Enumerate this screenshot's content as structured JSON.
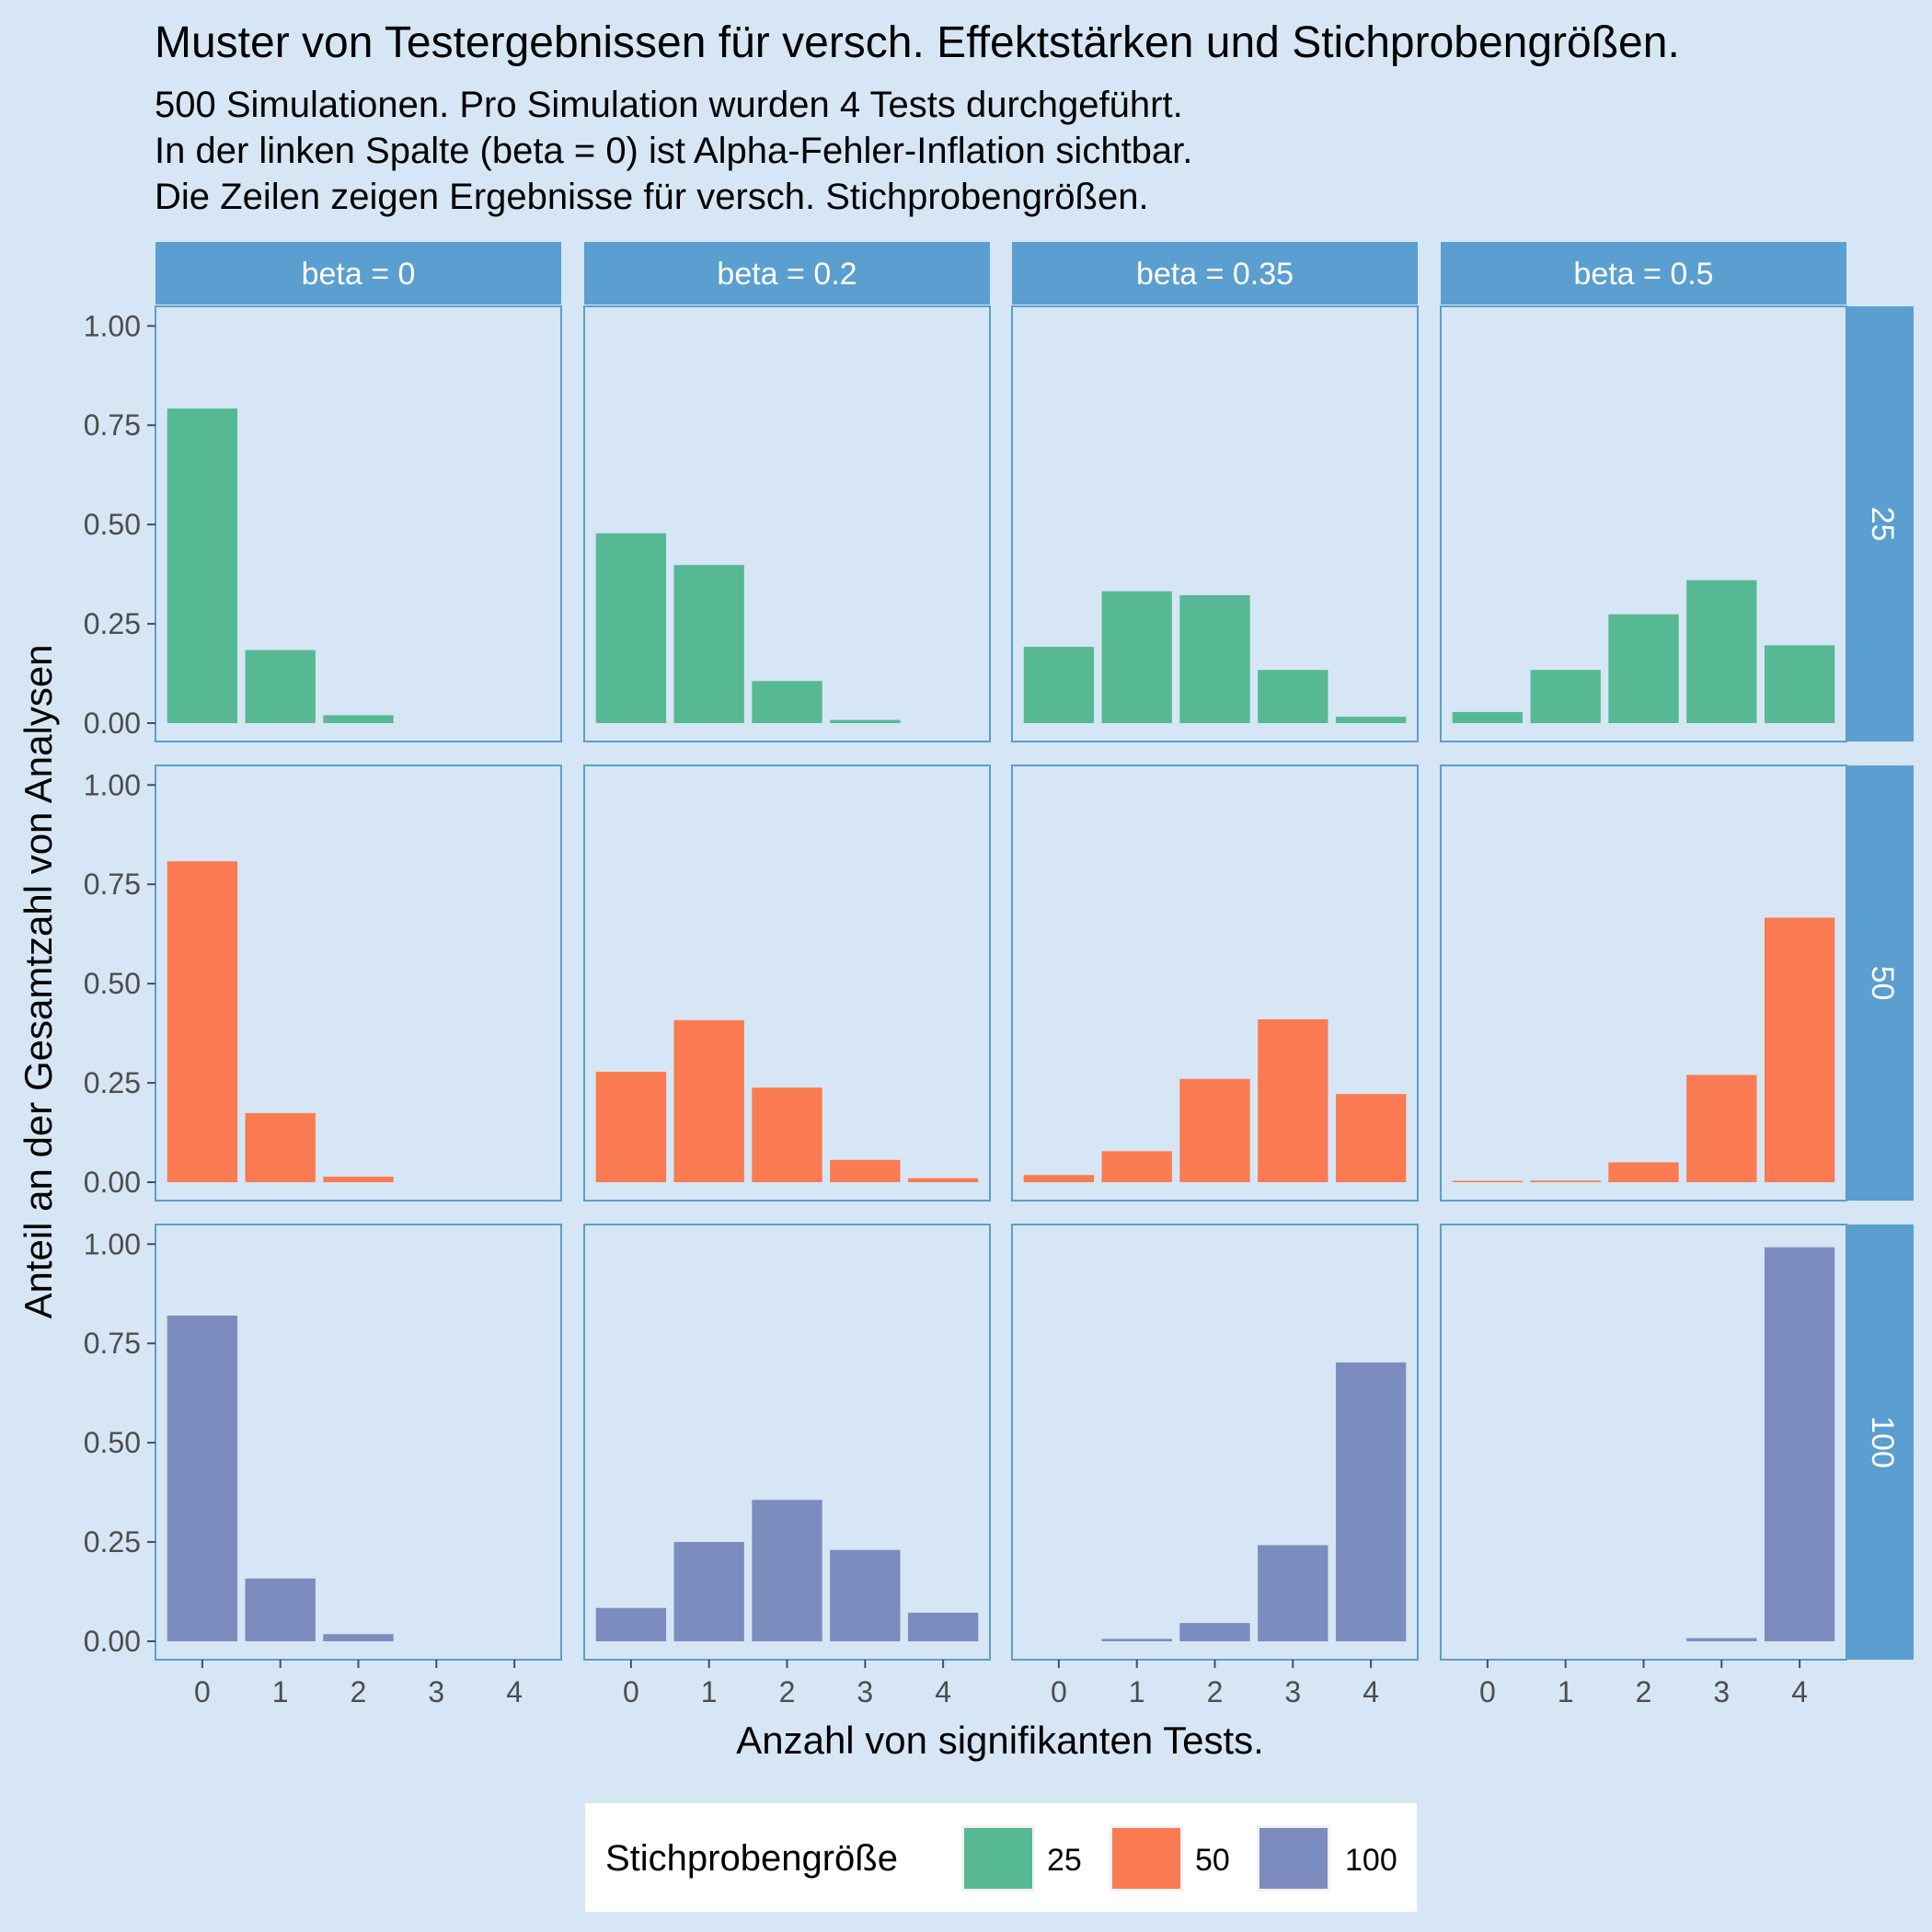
{
  "chart_data": {
    "type": "bar",
    "title": "Muster von Testergebnissen für versch. Effektstärken und Stichprobengrößen.",
    "subtitle_lines": [
      "500 Simulationen. Pro Simulation wurden 4 Tests durchgeführt.",
      "In der linken Spalte (beta = 0) ist Alpha-Fehler-Inflation sichtbar.",
      "Die Zeilen zeigen Ergebnisse für versch. Stichprobengrößen."
    ],
    "xlabel": "Anzahl von signifikanten Tests.",
    "ylabel": "Anteil an der Gesamtzahl von Analysen",
    "categories": [
      "0",
      "1",
      "2",
      "3",
      "4"
    ],
    "y_ticks": [
      "0.00",
      "0.25",
      "0.50",
      "0.75",
      "1.00"
    ],
    "ylim": [
      0,
      1.04
    ],
    "columns": [
      "beta = 0",
      "beta = 0.2",
      "beta = 0.35",
      "beta = 0.5"
    ],
    "rows": [
      "25",
      "50",
      "100"
    ],
    "legend": {
      "title": "Stichprobengröße",
      "position": "bottom",
      "entries": [
        {
          "label": "25",
          "color": "#57b994"
        },
        {
          "label": "50",
          "color": "#fa7a51"
        },
        {
          "label": "100",
          "color": "#7c8cbf"
        }
      ]
    },
    "grid": false,
    "panels": [
      [
        [
          0.792,
          0.184,
          0.02,
          0,
          0
        ],
        [
          0.478,
          0.398,
          0.106,
          0.008,
          0
        ],
        [
          0.192,
          0.332,
          0.322,
          0.134,
          0.016
        ],
        [
          0.028,
          0.134,
          0.274,
          0.36,
          0.196
        ]
      ],
      [
        [
          0.808,
          0.174,
          0.014,
          0,
          0
        ],
        [
          0.278,
          0.408,
          0.238,
          0.056,
          0.01
        ],
        [
          0.018,
          0.078,
          0.26,
          0.41,
          0.222
        ],
        [
          0.002,
          0.004,
          0.05,
          0.27,
          0.666
        ]
      ],
      [
        [
          0.82,
          0.158,
          0.018,
          0,
          0
        ],
        [
          0.084,
          0.25,
          0.356,
          0.23,
          0.072
        ],
        [
          0,
          0.006,
          0.046,
          0.242,
          0.702
        ],
        [
          0,
          0,
          0,
          0.008,
          0.992
        ]
      ]
    ]
  },
  "colors": {
    "background": "#d6e6f4",
    "panel_border": "#5a9fcf",
    "strip": "#5a9fcf",
    "tick": "#4d4d4d"
  }
}
